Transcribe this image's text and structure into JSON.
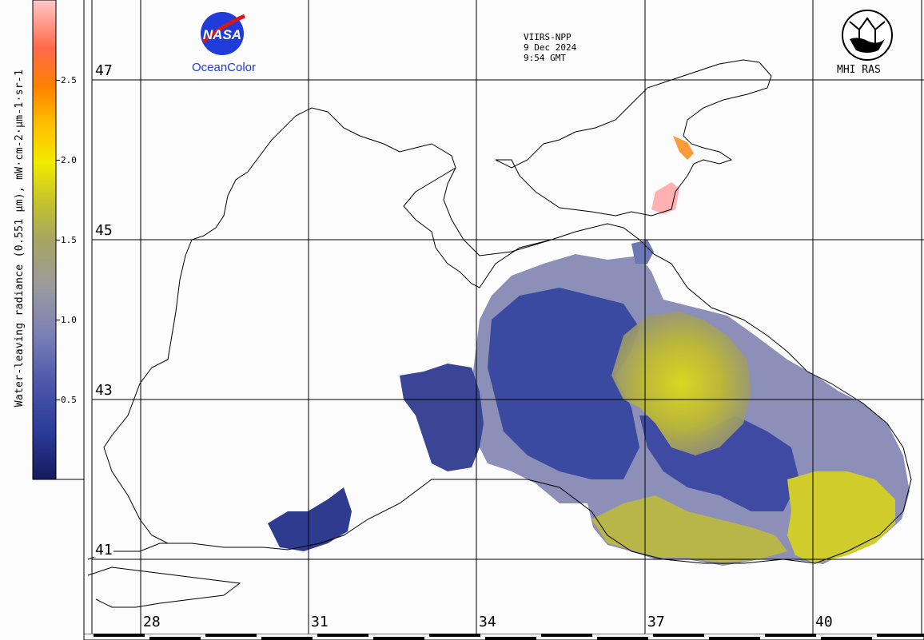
{
  "colorbar": {
    "label": "Water-leaving radiance (0.551 µm), mW·cm-2·µm-1·sr-1",
    "ticks": [
      "2.5",
      "2.0",
      "1.5",
      "1.0",
      "0.5"
    ],
    "tick_values": [
      2.5,
      2.0,
      1.5,
      1.0,
      0.5
    ],
    "range": [
      0,
      3.0
    ],
    "colors": [
      "#1b1f6e",
      "#2b3b9a",
      "#5a63b0",
      "#8c8fb8",
      "#a0a080",
      "#b8b83a",
      "#d7d71c",
      "#ffee00",
      "#ffb400",
      "#ff7a00",
      "#ff4a1a",
      "#ff8a8a",
      "#ffc8c8"
    ]
  },
  "header": {
    "sensor": "VIIRS-NPP",
    "date": "9 Dec 2024",
    "time": "9:54 GMT"
  },
  "logos": {
    "left_logo_text": "NASA",
    "left_caption": "OceanColor",
    "right_caption": "MHI RAS"
  },
  "latitudes": [
    "47",
    "45",
    "43",
    "41"
  ],
  "longitudes": [
    "28",
    "31",
    "34",
    "37",
    "40"
  ],
  "colors": {
    "background": "#fcfcfc",
    "grid": "#000000",
    "low_radiance": "#2b3b9a",
    "mid_radiance": "#8c8fb8",
    "high_radiance": "#d7d71c",
    "nasa_blue": "#1f3bd8"
  }
}
